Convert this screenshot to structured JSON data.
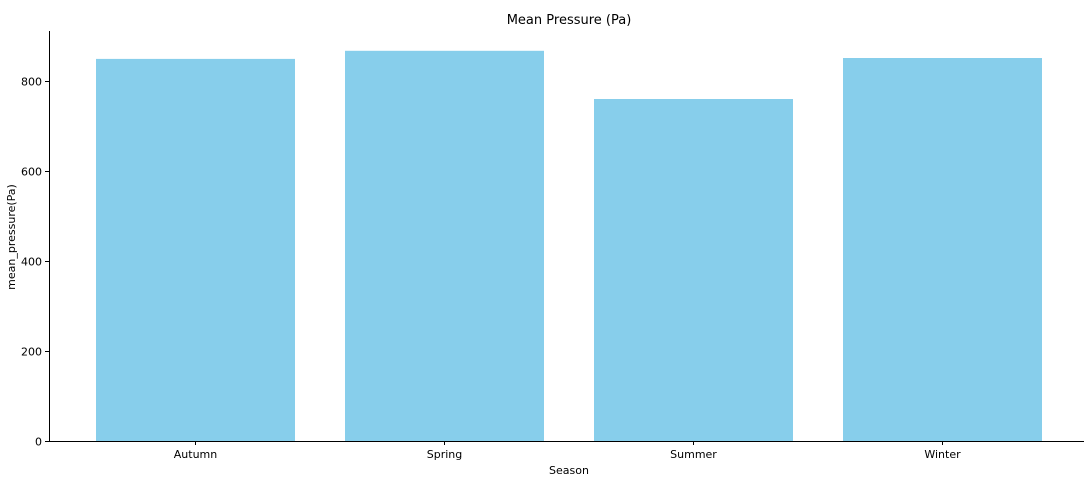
{
  "chart_data": {
    "type": "bar",
    "title": "Mean Pressure (Pa)",
    "xlabel": "Season",
    "ylabel": "mean_pressure(Pa)",
    "categories": [
      "Autumn",
      "Spring",
      "Summer",
      "Winter"
    ],
    "values": [
      848,
      866,
      759,
      850
    ],
    "ylim": [
      0,
      910
    ],
    "yticks": [
      0,
      200,
      400,
      600,
      800
    ],
    "grid": false,
    "bar_color": "#87CEEB",
    "axis_color": "#000000"
  }
}
